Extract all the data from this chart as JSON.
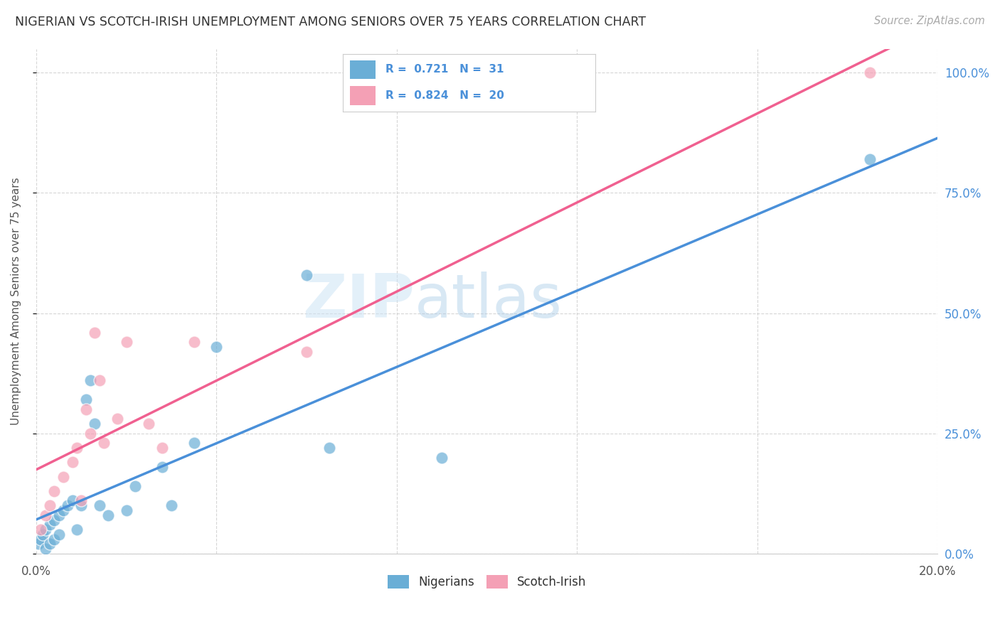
{
  "title": "NIGERIAN VS SCOTCH-IRISH UNEMPLOYMENT AMONG SENIORS OVER 75 YEARS CORRELATION CHART",
  "source": "Source: ZipAtlas.com",
  "ylabel": "Unemployment Among Seniors over 75 years",
  "xlim": [
    0.0,
    0.2
  ],
  "ylim": [
    0.0,
    1.05
  ],
  "xtick_pos": [
    0.0,
    0.04,
    0.08,
    0.12,
    0.16,
    0.2
  ],
  "xtick_labels": [
    "0.0%",
    "",
    "",
    "",
    "",
    "20.0%"
  ],
  "ytick_labels_right": [
    "0.0%",
    "25.0%",
    "50.0%",
    "75.0%",
    "100.0%"
  ],
  "ytick_positions_right": [
    0.0,
    0.25,
    0.5,
    0.75,
    1.0
  ],
  "nigerians_R": 0.721,
  "nigerians_N": 31,
  "scotchirish_R": 0.824,
  "scotchirish_N": 20,
  "nigerians_color": "#6aaed6",
  "scotchirish_color": "#f4a0b5",
  "nigerians_line_color": "#4a90d9",
  "scotchirish_line_color": "#f06090",
  "legend_text_color": "#4a90d9",
  "watermark_zip": "ZIP",
  "watermark_atlas": "atlas",
  "nigerians_x": [
    0.0005,
    0.001,
    0.0015,
    0.002,
    0.002,
    0.003,
    0.003,
    0.004,
    0.004,
    0.005,
    0.005,
    0.006,
    0.007,
    0.008,
    0.009,
    0.01,
    0.011,
    0.012,
    0.013,
    0.014,
    0.016,
    0.02,
    0.022,
    0.028,
    0.03,
    0.035,
    0.04,
    0.06,
    0.065,
    0.09,
    0.185
  ],
  "nigerians_y": [
    0.02,
    0.03,
    0.04,
    0.05,
    0.01,
    0.06,
    0.02,
    0.07,
    0.03,
    0.08,
    0.04,
    0.09,
    0.1,
    0.11,
    0.05,
    0.1,
    0.32,
    0.36,
    0.27,
    0.1,
    0.08,
    0.09,
    0.14,
    0.18,
    0.1,
    0.23,
    0.43,
    0.58,
    0.22,
    0.2,
    0.82
  ],
  "scotchirish_x": [
    0.001,
    0.002,
    0.003,
    0.004,
    0.006,
    0.008,
    0.009,
    0.01,
    0.011,
    0.012,
    0.013,
    0.014,
    0.015,
    0.018,
    0.02,
    0.025,
    0.028,
    0.035,
    0.06,
    0.185
  ],
  "scotchirish_y": [
    0.05,
    0.08,
    0.1,
    0.13,
    0.16,
    0.19,
    0.22,
    0.11,
    0.3,
    0.25,
    0.46,
    0.36,
    0.23,
    0.28,
    0.44,
    0.27,
    0.22,
    0.44,
    0.42,
    1.0
  ],
  "background_color": "#ffffff",
  "grid_color": "#cccccc"
}
